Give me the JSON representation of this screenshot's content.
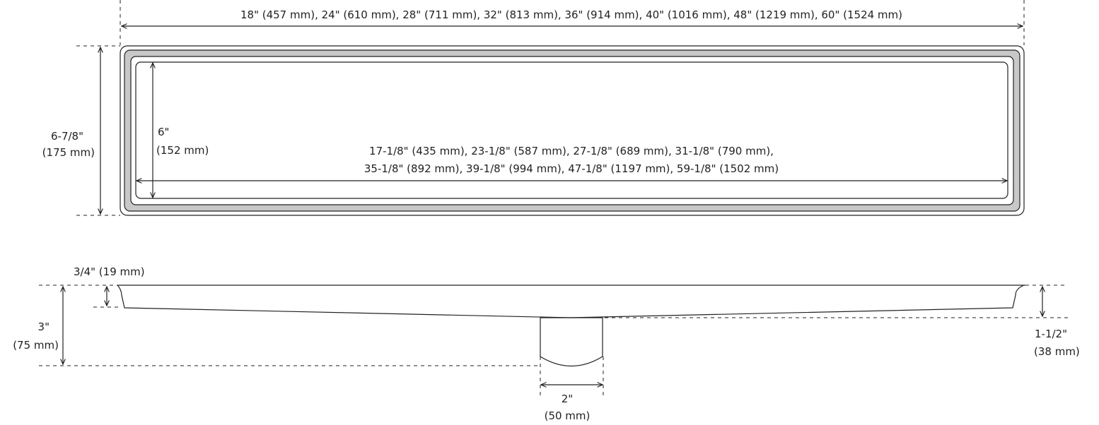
{
  "top_view": {
    "overall_length": "18\" (457 mm), 24\" (610 mm), 28\" (711 mm), 32\" (813 mm), 36\" (914 mm), 40\" (1016 mm), 48\" (1219 mm), 60\" (1524 mm)",
    "overall_width_in": "6-7/8\"",
    "overall_width_mm": "(175 mm)",
    "inner_width_in": "6\"",
    "inner_width_mm": "(152 mm)",
    "inner_length_line1": "17-1/8\" (435 mm), 23-1/8\" (587 mm), 27-1/8\" (689 mm), 31-1/8\" (790 mm),",
    "inner_length_line2": "35-1/8\" (892 mm), 39-1/8\" (994 mm), 47-1/8\" (1197 mm), 59-1/8\" (1502 mm)"
  },
  "side_view": {
    "flange_depth": "3/4\" (19 mm)",
    "total_depth_in": "3\"",
    "total_depth_mm": "(75 mm)",
    "end_depth_in": "1-1/2\"",
    "end_depth_mm": "(38 mm)",
    "outlet_in": "2\"",
    "outlet_mm": "(50 mm)"
  },
  "colors": {
    "line": "#222222",
    "frame_fill": "#c8c8c8"
  }
}
